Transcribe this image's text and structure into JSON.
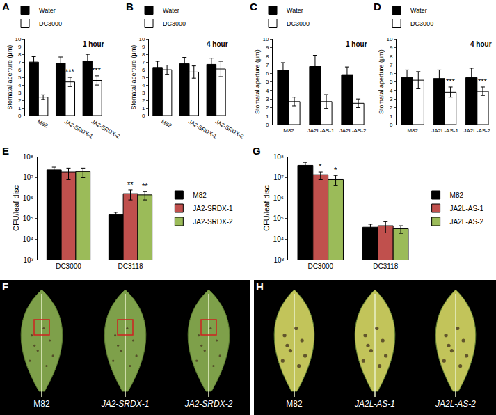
{
  "chart_data": [
    {
      "panel": "A",
      "type": "bar",
      "title": "1 hour",
      "y_label": "Stomatal aperture (μm)",
      "categories": [
        "M82",
        "JA2-SRDX-1",
        "JA2-SRDX-2"
      ],
      "series": [
        {
          "name": "Water",
          "color": "#000000",
          "values": [
            7.0,
            6.85,
            7.15
          ],
          "errors": [
            0.7,
            0.8,
            0.85
          ],
          "significance": [
            null,
            null,
            null
          ]
        },
        {
          "name": "DC3000",
          "color": "#ffffff",
          "values": [
            2.4,
            4.4,
            4.6
          ],
          "errors": [
            0.3,
            0.6,
            0.6
          ],
          "significance": [
            null,
            "***",
            "***"
          ]
        }
      ],
      "ylim": [
        0,
        10
      ],
      "yticks": [
        0,
        1,
        2,
        3,
        4,
        5,
        6,
        7,
        8,
        9,
        10
      ],
      "grid": false,
      "legend": "top"
    },
    {
      "panel": "B",
      "type": "bar",
      "title": "4 hour",
      "y_label": "Stomatal aperture (μm)",
      "categories": [
        "M82",
        "JA2-SRDX-1",
        "JA2-SRDX-2"
      ],
      "series": [
        {
          "name": "Water",
          "color": "#000000",
          "values": [
            6.3,
            6.8,
            6.7
          ],
          "errors": [
            0.8,
            0.8,
            0.8
          ],
          "significance": [
            null,
            null,
            null
          ]
        },
        {
          "name": "DC3000",
          "color": "#ffffff",
          "values": [
            6.0,
            5.7,
            6.1
          ],
          "errors": [
            0.6,
            0.8,
            1.0
          ],
          "significance": [
            null,
            null,
            null
          ]
        }
      ],
      "ylim": [
        0,
        10
      ],
      "yticks": [
        0,
        1,
        2,
        3,
        4,
        5,
        6,
        7,
        8,
        9,
        10
      ],
      "grid": false,
      "legend": "top"
    },
    {
      "panel": "C",
      "type": "bar",
      "title": "1 hour",
      "y_label": "Stomatal aperture (μm)",
      "categories": [
        "M82",
        "JA2L-AS-1",
        "JA2L-AS-2"
      ],
      "series": [
        {
          "name": "Water",
          "color": "#000000",
          "values": [
            6.35,
            6.8,
            5.85
          ],
          "errors": [
            0.9,
            1.3,
            0.9
          ],
          "significance": [
            null,
            null,
            null
          ]
        },
        {
          "name": "DC3000",
          "color": "#ffffff",
          "values": [
            2.7,
            2.7,
            2.5
          ],
          "errors": [
            0.5,
            0.8,
            0.5
          ],
          "significance": [
            null,
            null,
            null
          ]
        }
      ],
      "ylim": [
        0,
        10
      ],
      "yticks": [
        0,
        1,
        2,
        3,
        4,
        5,
        6,
        7,
        8,
        9,
        10
      ],
      "grid": false,
      "legend": "top"
    },
    {
      "panel": "D",
      "type": "bar",
      "title": "4 hour",
      "y_label": "Stomatal aperture (μm)",
      "categories": [
        "M82",
        "JA2L-AS-1",
        "JA2L-AS-2"
      ],
      "series": [
        {
          "name": "Water",
          "color": "#000000",
          "values": [
            5.5,
            5.4,
            5.5
          ],
          "errors": [
            0.9,
            1.0,
            1.1
          ],
          "significance": [
            null,
            null,
            null
          ]
        },
        {
          "name": "DC3000",
          "color": "#ffffff",
          "values": [
            5.2,
            3.8,
            3.9
          ],
          "errors": [
            1.0,
            0.6,
            0.5
          ],
          "significance": [
            null,
            "***",
            "***"
          ]
        }
      ],
      "ylim": [
        0,
        10
      ],
      "yticks": [
        0,
        1,
        2,
        3,
        4,
        5,
        6,
        7,
        8,
        9,
        10
      ],
      "grid": false,
      "legend": "top"
    },
    {
      "panel": "E",
      "type": "bar",
      "y_label": "CFU/leaf disc",
      "log": "y",
      "categories": [
        "DC3000",
        "DC3118"
      ],
      "series": [
        {
          "name": "M82",
          "color": "#000000",
          "values": [
            23000000,
            150000
          ],
          "errors": [
            8000000,
            50000
          ],
          "significance": [
            null,
            null
          ]
        },
        {
          "name": "JA2-SRDX-1",
          "color": "#c0504d",
          "values": [
            18000000,
            1600000
          ],
          "errors": [
            10000000,
            800000
          ],
          "significance": [
            null,
            "**"
          ]
        },
        {
          "name": "JA2-SRDX-2",
          "color": "#9bbb59",
          "values": [
            19000000,
            1400000
          ],
          "errors": [
            9000000,
            600000
          ],
          "significance": [
            null,
            "**"
          ]
        }
      ],
      "ylim": [
        1000,
        100000000
      ],
      "yticks": [
        {
          "value": 1000,
          "label": "10³"
        },
        {
          "value": 10000,
          "label": "10⁴"
        },
        {
          "value": 100000,
          "label": "10⁵"
        },
        {
          "value": 1000000,
          "label": "10⁶"
        },
        {
          "value": 10000000,
          "label": "10⁷"
        },
        {
          "value": 100000000,
          "label": "10⁸"
        }
      ],
      "grid": false,
      "legend": "right"
    },
    {
      "panel": "G",
      "type": "bar",
      "y_label": "CFU/leaf disc",
      "log": "y",
      "categories": [
        "DC3000",
        "DC3118"
      ],
      "series": [
        {
          "name": "M82",
          "color": "#000000",
          "values": [
            38000000,
            38000
          ],
          "errors": [
            15000000,
            15000
          ],
          "significance": [
            null,
            null
          ]
        },
        {
          "name": "JA2L-AS-1",
          "color": "#c0504d",
          "values": [
            13000000,
            45000
          ],
          "errors": [
            5000000,
            25000
          ],
          "significance": [
            "*",
            null
          ]
        },
        {
          "name": "JA2L-AS-2",
          "color": "#9bbb59",
          "values": [
            8000000,
            32000
          ],
          "errors": [
            4000000,
            13000
          ],
          "significance": [
            "*",
            null
          ]
        }
      ],
      "ylim": [
        1000,
        100000000
      ],
      "yticks": [
        {
          "value": 1000,
          "label": "10³"
        },
        {
          "value": 10000,
          "label": "10⁴"
        },
        {
          "value": 100000,
          "label": "10⁵"
        },
        {
          "value": 1000000,
          "label": "10⁶"
        },
        {
          "value": 10000000,
          "label": "10⁷"
        },
        {
          "value": 100000000,
          "label": "10⁸"
        }
      ],
      "grid": false,
      "legend": "right"
    }
  ],
  "images": [
    {
      "panel": "F",
      "labels": [
        "M82",
        "JA2-SRDX-1",
        "JA2-SRDX-2"
      ],
      "color": "#7ea04a"
    },
    {
      "panel": "H",
      "labels": [
        "M82",
        "JA2L-AS-1",
        "JA2L-AS-2"
      ],
      "color": "#c2c45a"
    }
  ]
}
